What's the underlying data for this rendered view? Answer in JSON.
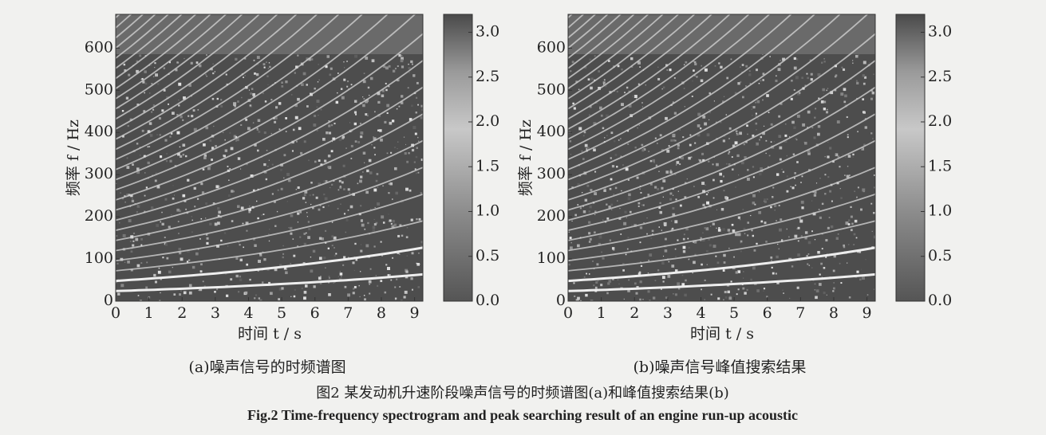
{
  "chart_data": [
    {
      "type": "heatmap",
      "subtitle": "(a)噪声信号的时频谱图",
      "xlabel": "时间 t / s",
      "ylabel": "频率 f / Hz",
      "xlim": [
        0,
        9.25
      ],
      "xticks": [
        0,
        1,
        2,
        3,
        4,
        5,
        6,
        7,
        8,
        9
      ],
      "ylim": [
        0,
        680
      ],
      "yticks": [
        0,
        100,
        200,
        300,
        400,
        500,
        600
      ],
      "clim": [
        0,
        3.2
      ],
      "cticks": [
        {
          "value": 0,
          "label": "0.0"
        },
        {
          "value": 0.5,
          "label": "0.5"
        },
        {
          "value": 1,
          "label": "1.0"
        },
        {
          "value": 1.5,
          "label": "1.5"
        },
        {
          "value": 2,
          "label": "2.0"
        },
        {
          "value": 2.5,
          "label": "2.5"
        },
        {
          "value": 3,
          "label": "3.0"
        }
      ]
    },
    {
      "type": "heatmap",
      "subtitle": "(b)噪声信号峰值搜索结果",
      "xlabel": "时间 t / s",
      "ylabel": "频率 f / Hz",
      "xlim": [
        0,
        9.25
      ],
      "xticks": [
        0,
        1,
        2,
        3,
        4,
        5,
        6,
        7,
        8,
        9
      ],
      "ylim": [
        0,
        680
      ],
      "yticks": [
        0,
        100,
        200,
        300,
        400,
        500,
        600
      ],
      "clim": [
        0,
        3.2
      ],
      "cticks": [
        {
          "value": 0,
          "label": "0.0"
        },
        {
          "value": 0.5,
          "label": "0.5"
        },
        {
          "value": 1,
          "label": "1.0"
        },
        {
          "value": 1.5,
          "label": "1.5"
        },
        {
          "value": 2,
          "label": "2.0"
        },
        {
          "value": 2.5,
          "label": "2.5"
        },
        {
          "value": 3,
          "label": "3.0"
        }
      ]
    }
  ],
  "caption": {
    "cn": "图2 某发动机升速阶段噪声信号的时频谱图(a)和峰值搜索结果(b)",
    "en": "Fig.2 Time-frequency spectrogram and peak searching result of an engine run-up acoustic"
  }
}
